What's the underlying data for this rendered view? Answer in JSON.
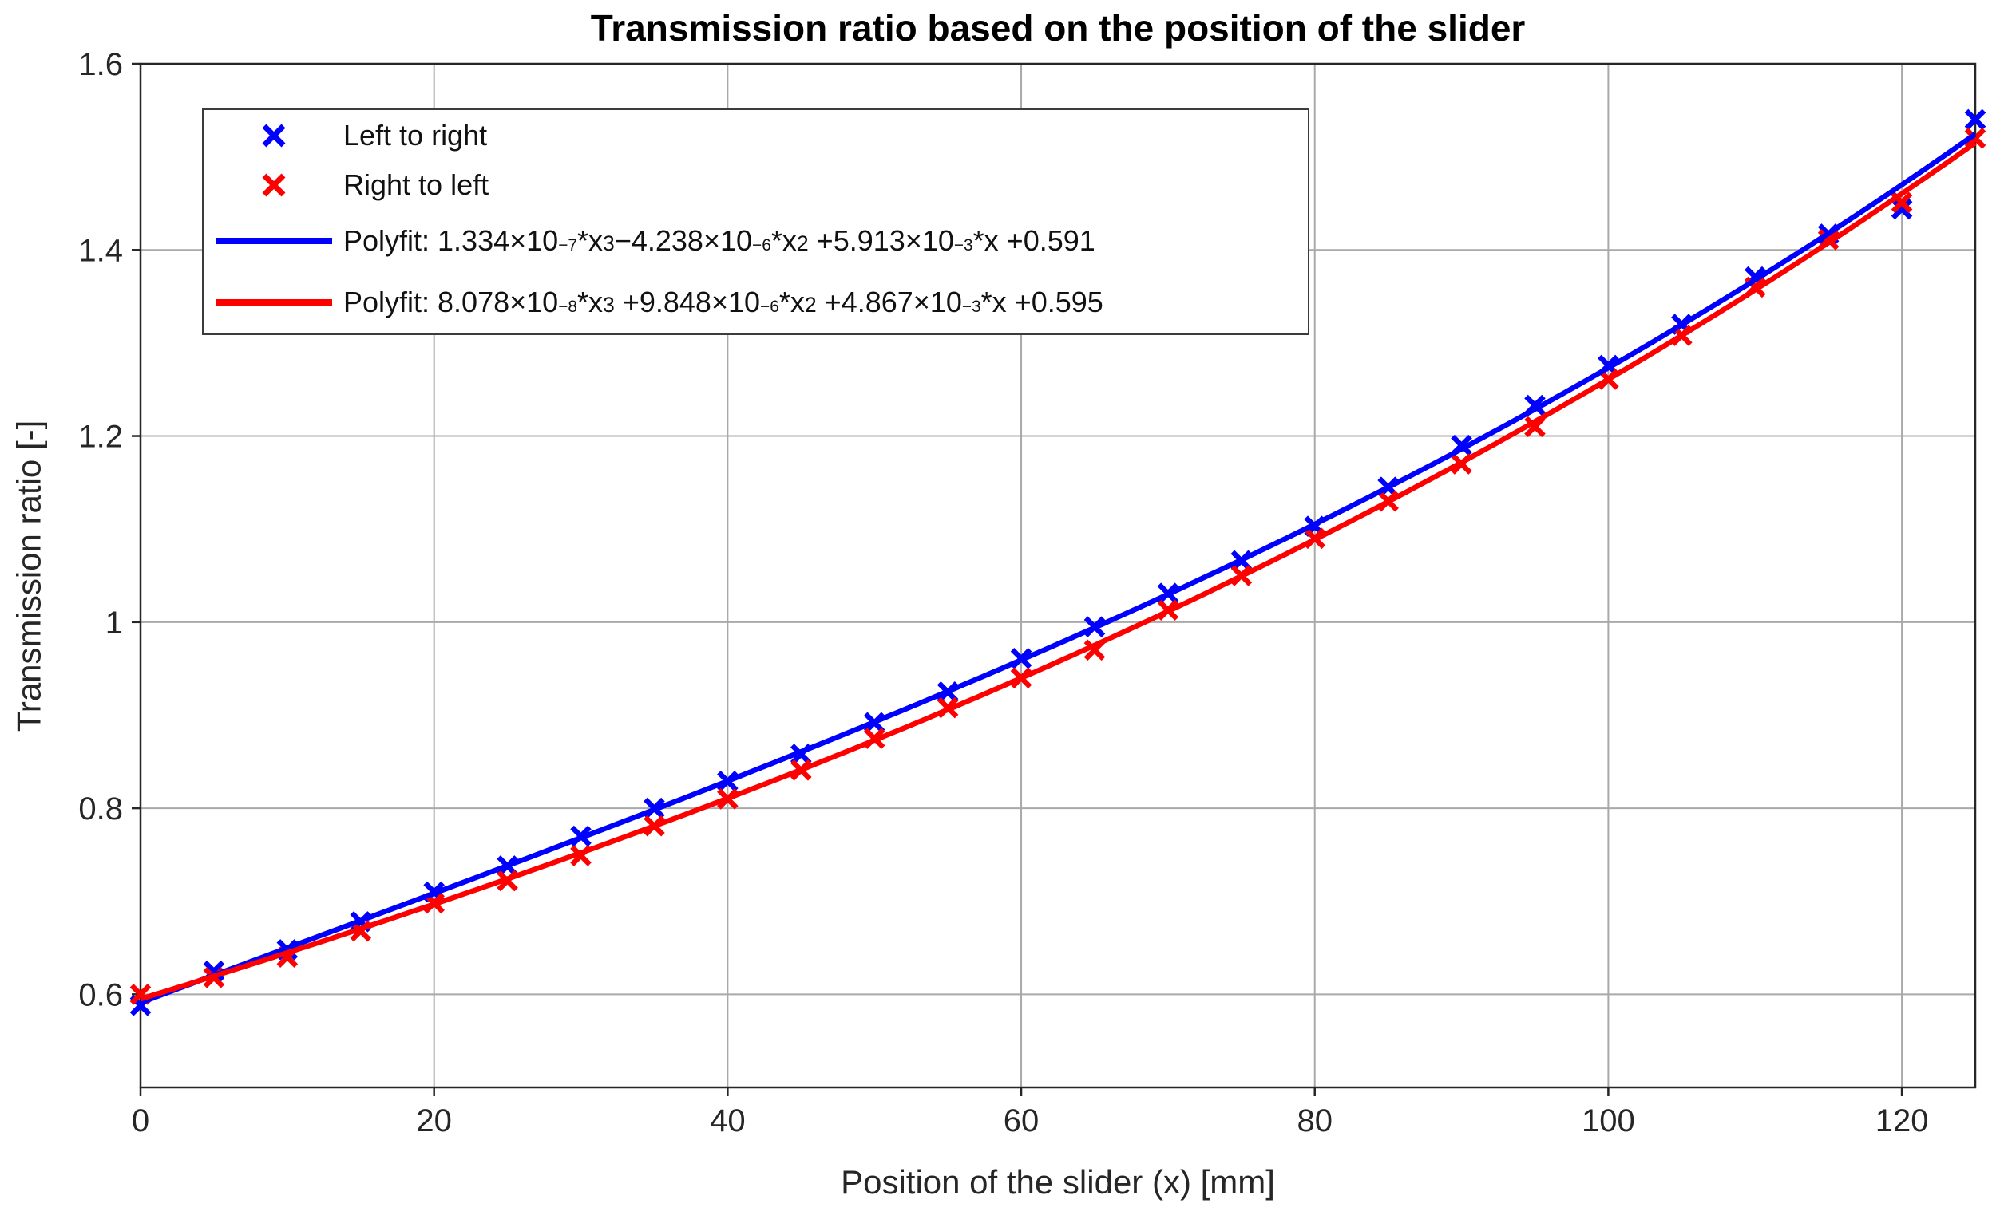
{
  "chart_data": {
    "type": "scatter",
    "title": "Transmission ratio based on the position of the slider",
    "xlabel": "Position of the slider (x) [mm]",
    "ylabel": "Transmission ratio [-]",
    "xlim": [
      0,
      125
    ],
    "ylim": [
      0.5,
      1.6
    ],
    "xticks": [
      0,
      20,
      40,
      60,
      80,
      100,
      120
    ],
    "yticks": [
      0.6,
      0.8,
      1,
      1.2,
      1.4,
      1.6
    ],
    "grid": true,
    "legend_position": "northwest",
    "x": [
      0,
      5,
      10,
      15,
      20,
      25,
      30,
      35,
      40,
      45,
      50,
      55,
      60,
      65,
      70,
      75,
      80,
      85,
      90,
      95,
      100,
      105,
      110,
      115,
      120,
      125
    ],
    "series": [
      {
        "name": "Left to right",
        "type": "scatter",
        "marker": "x",
        "color": "#0000ff",
        "values": [
          0.588,
          0.625,
          0.648,
          0.678,
          0.71,
          0.738,
          0.77,
          0.8,
          0.829,
          0.858,
          0.892,
          0.925,
          0.961,
          0.995,
          1.031,
          1.066,
          1.103,
          1.145,
          1.19,
          1.233,
          1.276,
          1.32,
          1.371,
          1.417,
          1.444,
          1.54
        ]
      },
      {
        "name": "Right to left",
        "type": "scatter",
        "marker": "x",
        "color": "#ff0000",
        "values": [
          0.6,
          0.618,
          0.64,
          0.668,
          0.698,
          0.722,
          0.749,
          0.781,
          0.81,
          0.841,
          0.875,
          0.908,
          0.94,
          0.97,
          1.013,
          1.05,
          1.09,
          1.13,
          1.17,
          1.21,
          1.261,
          1.308,
          1.36,
          1.411,
          1.451,
          1.52
        ]
      },
      {
        "name": "Polyfit: 1.334×10^{−7}*x^{3}−4.238×10^{−6}*x^{2} +5.913×10^{−3}*x +0.591",
        "type": "line",
        "color": "#0000ff",
        "poly_coeffs": [
          1.334e-07,
          -4.238e-06,
          0.005913,
          0.591
        ]
      },
      {
        "name": "Polyfit: 8.078×10^{−8}*x^{3} +9.848×10^{−6}*x^{2} +4.867×10^{−3}*x +0.595",
        "type": "line",
        "color": "#ff0000",
        "poly_coeffs": [
          8.078e-08,
          9.848e-06,
          0.004867,
          0.595
        ]
      }
    ]
  }
}
